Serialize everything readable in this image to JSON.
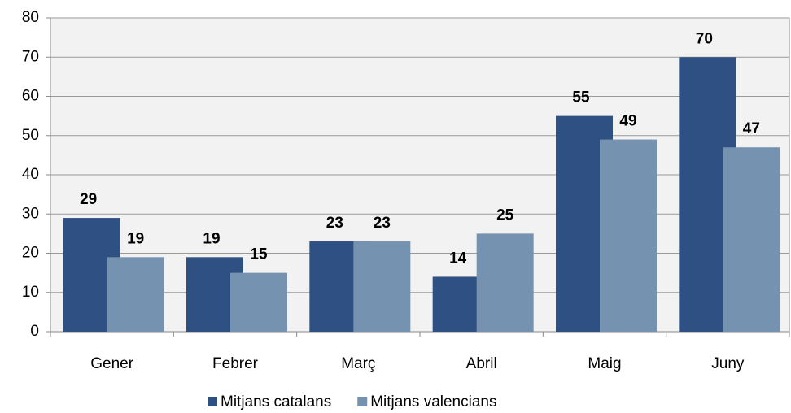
{
  "chart_data": {
    "type": "bar",
    "categories": [
      "Gener",
      "Febrer",
      "Març",
      "Abril",
      "Maig",
      "Juny"
    ],
    "series": [
      {
        "name": "Mitjans catalans",
        "color": "#2f5083",
        "values": [
          29,
          19,
          23,
          14,
          55,
          70
        ]
      },
      {
        "name": "Mitjans valencians",
        "color": "#7692b1",
        "values": [
          19,
          15,
          23,
          25,
          49,
          47
        ]
      }
    ],
    "ylim": [
      0,
      80
    ],
    "yticks": [
      0,
      10,
      20,
      30,
      40,
      50,
      60,
      70,
      80
    ],
    "grid": true,
    "legend": "bottom"
  }
}
